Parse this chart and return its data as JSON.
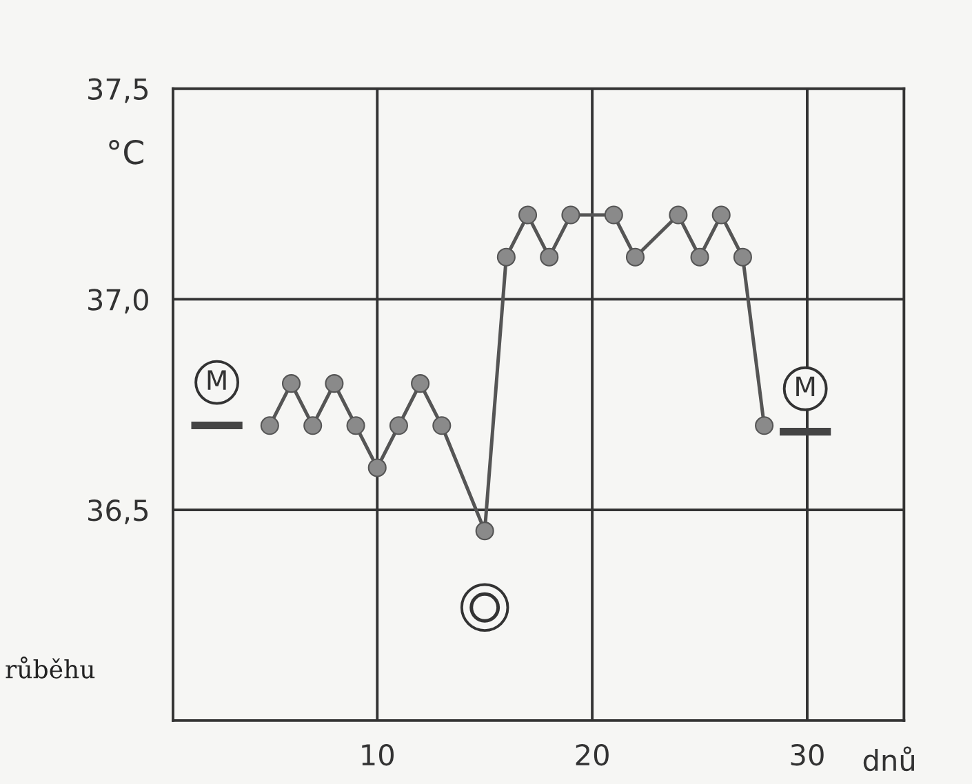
{
  "chart_data": {
    "type": "line",
    "xlabel": "dnů",
    "ylabel": "°C",
    "series": [
      {
        "color": "#555555",
        "x": [
          5,
          6,
          7,
          8,
          9,
          10,
          11,
          12,
          13,
          15,
          16,
          17,
          18,
          19,
          21,
          22,
          24,
          25,
          26,
          27,
          28
        ],
        "values": [
          36.7,
          36.8,
          36.7,
          36.8,
          36.7,
          36.6,
          36.7,
          36.8,
          36.7,
          36.45,
          37.1,
          37.2,
          37.1,
          37.2,
          37.2,
          37.1,
          37.2,
          37.1,
          37.2,
          37.1,
          36.7
        ]
      }
    ],
    "xlim": [
      0.5,
      34.5
    ],
    "ylim": [
      36.0,
      37.5
    ],
    "xticks": [
      10,
      20,
      30
    ],
    "yticks": [
      {
        "value": 36.5,
        "label": "36,5"
      },
      {
        "value": 37.0,
        "label": "37,0"
      },
      {
        "value": 37.5,
        "label": "37,5"
      }
    ],
    "grid": true,
    "marker": "circle",
    "line_style": "solid",
    "annotations": [
      "M",
      "M",
      "růběhu"
    ]
  }
}
